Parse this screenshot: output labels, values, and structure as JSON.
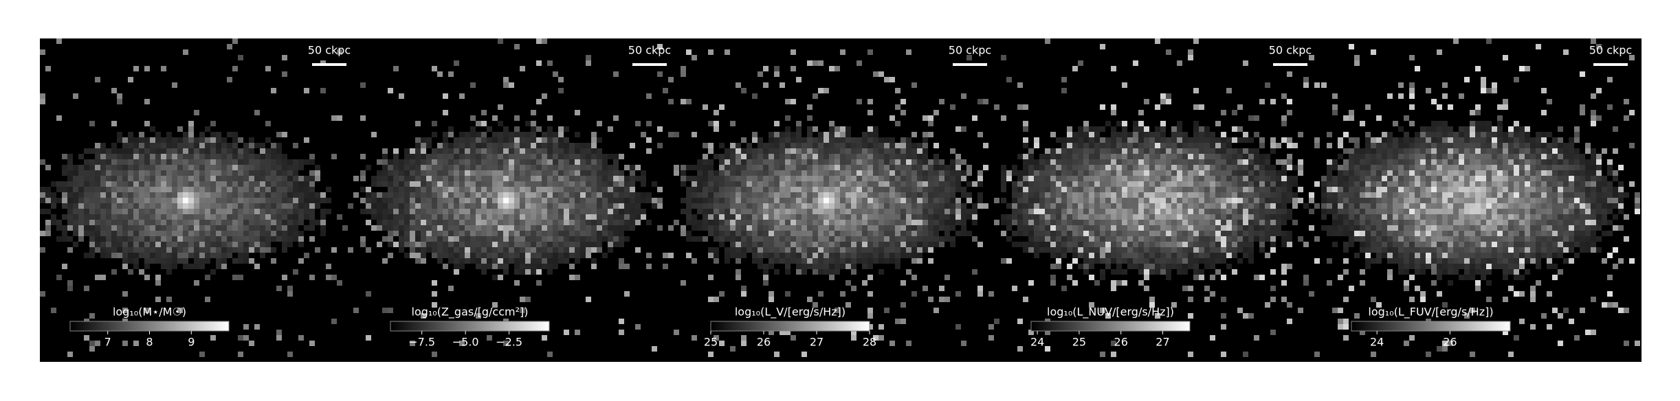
{
  "panels": [
    {
      "scale_label": "50 ckpc",
      "colorbar_label": "log₁₀(M⋆/M☉)",
      "clim": [
        6.1,
        9.9
      ],
      "ticks": [
        7,
        8,
        9
      ]
    },
    {
      "scale_label": "50 ckpc",
      "colorbar_label": "log₁₀(Z_gas/[g/ccm²])",
      "clim": [
        -9.3,
        -0.2
      ],
      "ticks": [
        {
          "value": -7.5,
          "label": "−7.5"
        },
        {
          "value": -5.0,
          "label": "−5.0"
        },
        {
          "value": -2.5,
          "label": "−2.5"
        }
      ]
    },
    {
      "scale_label": "50 ckpc",
      "colorbar_label": "log₁₀(L_V/[erg/s/Hz])",
      "clim": [
        25,
        28
      ],
      "ticks": [
        25,
        26,
        27,
        28
      ]
    },
    {
      "scale_label": "50 ckpc",
      "colorbar_label": "log₁₀(L_NUV/[erg/s/Hz])",
      "clim": [
        23.85,
        27.65
      ],
      "ticks": [
        24,
        25,
        26,
        27
      ]
    },
    {
      "scale_label": "50 ckpc",
      "colorbar_label": "log₁₀(L_FUV/[erg/s/Hz])",
      "clim": [
        23.3,
        27.65
      ],
      "ticks": [
        24,
        26
      ]
    }
  ]
}
